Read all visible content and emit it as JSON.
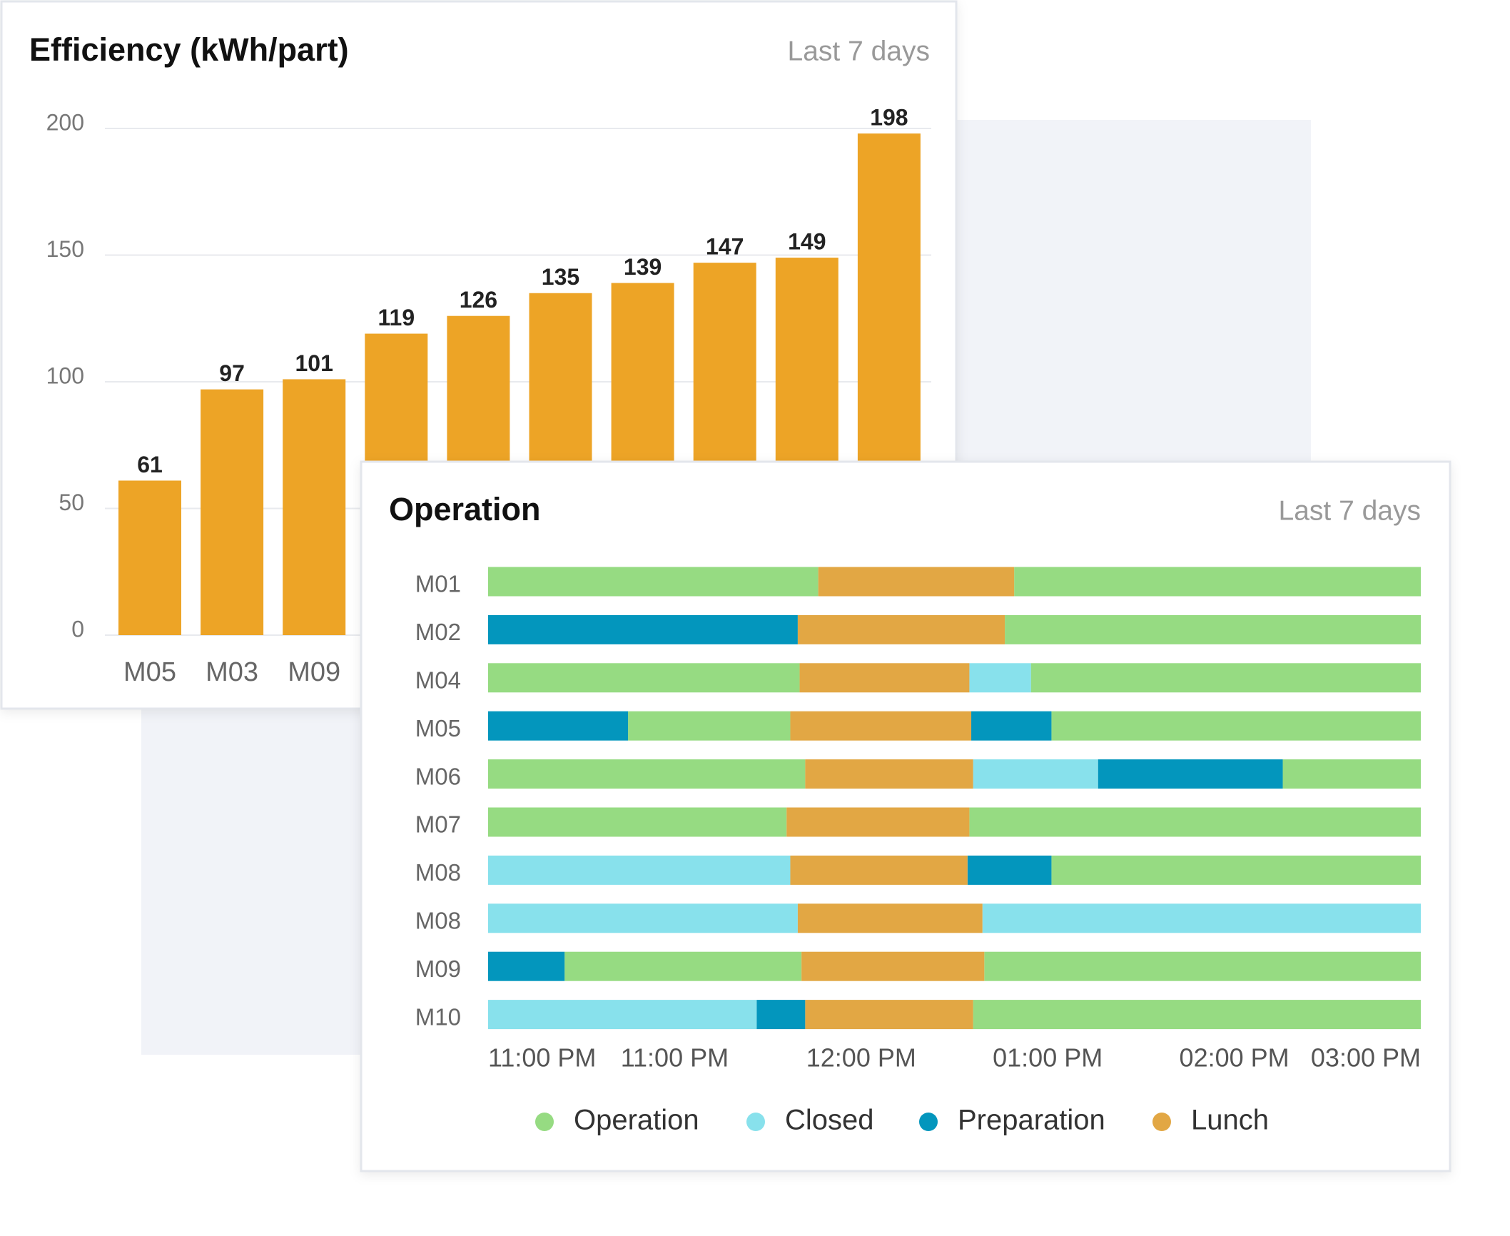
{
  "chart_data": [
    {
      "type": "bar",
      "title": "Efficiency (kWh/part)",
      "subtitle": "Last 7 days",
      "categories": [
        "M05",
        "M03",
        "M09",
        null,
        null,
        null,
        null,
        null,
        null,
        null
      ],
      "values": [
        61,
        97,
        101,
        119,
        126,
        135,
        139,
        147,
        149,
        198
      ],
      "color": "#eda426",
      "ylim": [
        0,
        200
      ],
      "yticks": [
        0,
        50,
        100,
        150,
        200
      ],
      "grid": true
    },
    {
      "type": "timeline",
      "title": "Operation",
      "subtitle": "Last 7 days",
      "categories": [
        "M01",
        "M02",
        "M04",
        "M05",
        "M06",
        "M07",
        "M08",
        "M08",
        "M09",
        "M10"
      ],
      "xlim": [
        0,
        5
      ],
      "xticks": [
        {
          "value": 0,
          "label": "11:00 PM"
        },
        {
          "value": 1,
          "label": "11:00 PM"
        },
        {
          "value": 2,
          "label": "12:00 PM"
        },
        {
          "value": 3,
          "label": "01:00 PM"
        },
        {
          "value": 4,
          "label": "02:00 PM"
        },
        {
          "value": 5,
          "label": "03:00 PM"
        }
      ],
      "series": [
        {
          "name": "Operation",
          "color": "#96db82",
          "row": [
            0,
            0,
            1,
            2,
            2,
            3,
            3,
            4,
            4,
            5,
            5,
            6,
            8,
            8,
            9
          ],
          "start": [
            0,
            2.82,
            2.77,
            0,
            2.91,
            0.75,
            3.02,
            0,
            4.26,
            0,
            2.58,
            3.02,
            0.41,
            2.66,
            2.6
          ],
          "end": [
            1.77,
            5,
            5,
            1.67,
            5,
            1.62,
            5,
            1.7,
            5,
            1.6,
            5,
            5,
            1.68,
            5,
            5
          ]
        },
        {
          "name": "Closed",
          "color": "#88e1ec",
          "row": [
            2,
            4,
            6,
            7,
            7,
            9
          ],
          "start": [
            2.58,
            2.6,
            0,
            0,
            2.65,
            0
          ],
          "end": [
            2.91,
            3.27,
            1.62,
            1.66,
            5,
            1.44
          ]
        },
        {
          "name": "Preparation",
          "color": "#0396bd",
          "row": [
            1,
            3,
            3,
            4,
            6,
            8,
            9
          ],
          "start": [
            0,
            0,
            2.59,
            3.27,
            2.57,
            0,
            1.44
          ],
          "end": [
            1.66,
            0.75,
            3.02,
            4.26,
            3.02,
            0.41,
            1.7
          ]
        },
        {
          "name": "Lunch",
          "color": "#e2a744",
          "row": [
            0,
            1,
            2,
            3,
            4,
            5,
            6,
            7,
            8,
            9
          ],
          "start": [
            1.77,
            1.66,
            1.67,
            1.62,
            1.7,
            1.6,
            1.62,
            1.66,
            1.68,
            1.7
          ],
          "end": [
            2.82,
            2.77,
            2.58,
            2.59,
            2.6,
            2.58,
            2.57,
            2.65,
            2.66,
            2.6
          ]
        }
      ]
    }
  ]
}
